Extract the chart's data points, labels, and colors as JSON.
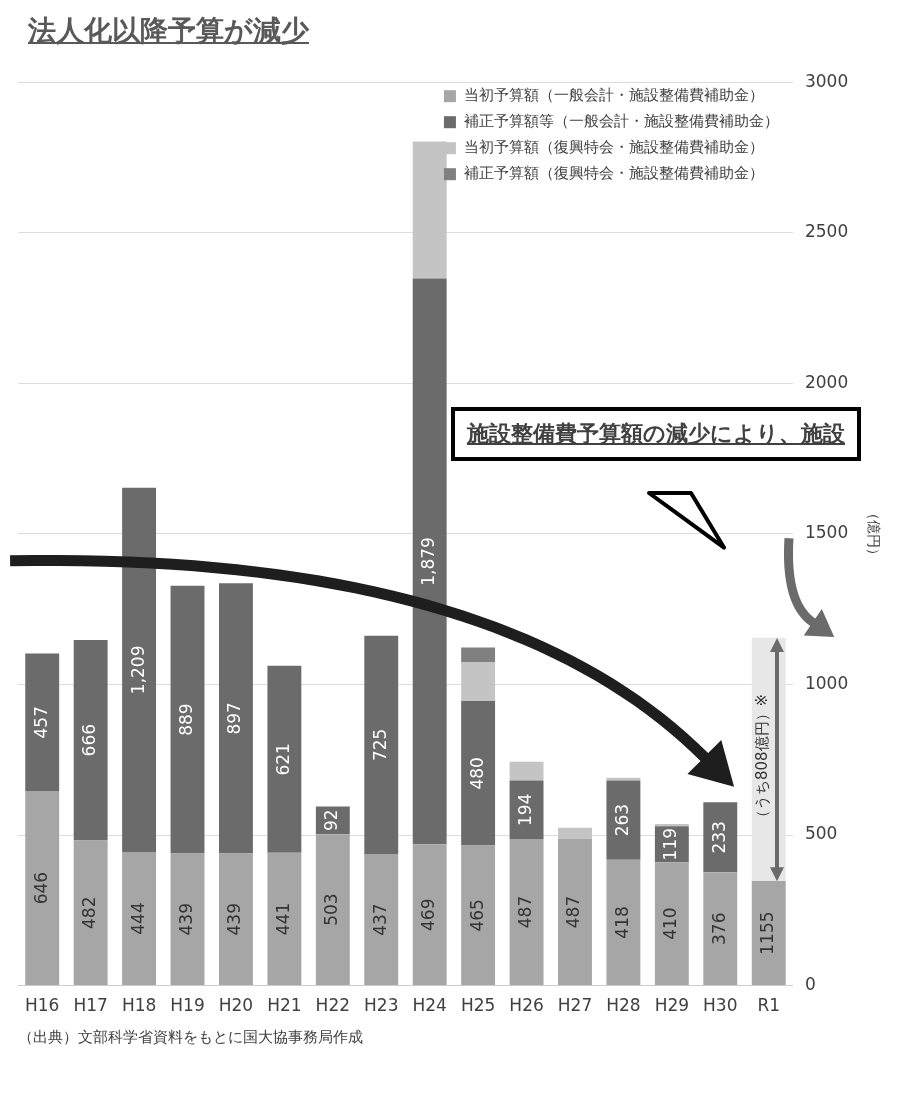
{
  "chart_data": {
    "type": "bar",
    "stacked": true,
    "title": "法人化以降予算が減少",
    "ylabel": "（億円）",
    "categories": [
      "H16",
      "H17",
      "H18",
      "H19",
      "H20",
      "H21",
      "H22",
      "H23",
      "H24",
      "H25",
      "H26",
      "H27",
      "H28",
      "H29",
      "H30",
      "R1"
    ],
    "series": [
      {
        "name": "当初予算額（一般会計・施設整備費補助金）",
        "color": "#a6a6a6",
        "values": [
          646,
          482,
          444,
          439,
          439,
          441,
          503,
          437,
          469,
          465,
          487,
          487,
          418,
          410,
          376,
          347
        ],
        "value_labels": [
          "646",
          "482",
          "444",
          "439",
          "439",
          "441",
          "503",
          "437",
          "469",
          "465",
          "487",
          "487",
          "418",
          "410",
          "376",
          null
        ]
      },
      {
        "name": "補正予算額等（一般会計・施設整備費補助金）",
        "color": "#6b6b6b",
        "values": [
          457,
          666,
          1209,
          889,
          897,
          621,
          92,
          725,
          1879,
          480,
          194,
          null,
          263,
          119,
          233,
          null
        ],
        "value_labels": [
          "457",
          "666",
          "1,209",
          "889",
          "897",
          "621",
          "92",
          "725",
          "1,879",
          "480",
          "194",
          null,
          "263",
          "119",
          "233",
          null
        ]
      },
      {
        "name": "当初予算額（復興特会・施設整備費補助金）",
        "color": "#c4c4c4",
        "values": [
          null,
          null,
          null,
          null,
          null,
          null,
          null,
          null,
          455,
          130,
          62,
          37,
          9,
          8,
          null,
          null
        ]
      },
      {
        "name": "補正予算額（復興特会・施設整備費補助金）",
        "color": "#808080",
        "values": [
          null,
          null,
          null,
          null,
          null,
          null,
          null,
          null,
          null,
          48,
          null,
          null,
          null,
          null,
          null,
          null
        ]
      },
      {
        "color": "#e7e7e7",
        "values": [
          null,
          null,
          null,
          null,
          null,
          null,
          null,
          null,
          null,
          null,
          null,
          null,
          null,
          null,
          null,
          808
        ]
      }
    ],
    "totals": [
      null,
      null,
      null,
      null,
      null,
      null,
      null,
      null,
      null,
      null,
      null,
      null,
      null,
      null,
      null,
      "1155"
    ],
    "ylim": [
      0,
      3000
    ],
    "yticks": [
      0,
      500,
      1000,
      1500,
      2000,
      2500,
      3000
    ],
    "grid": "y",
    "legend": "top right",
    "annotations": [
      "施設整備費予算額の減少により、施設",
      "（うち808億円）※",
      "（出典）文部科学省資料をもとに国大協事務局作成"
    ]
  }
}
